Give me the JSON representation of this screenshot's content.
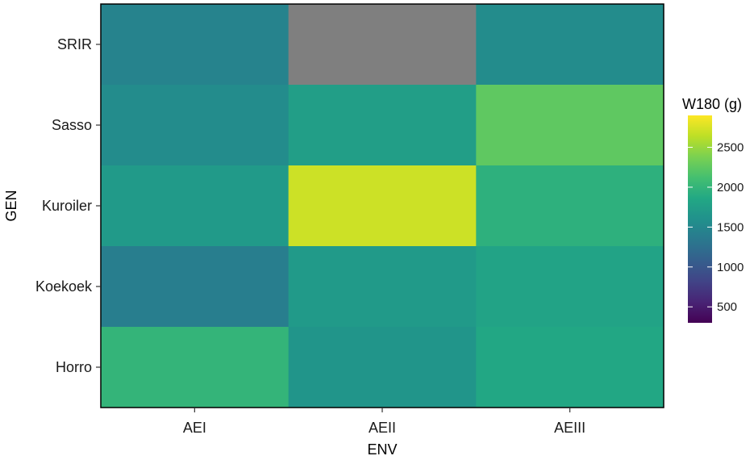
{
  "chart_data": {
    "type": "heatmap",
    "xlabel": "ENV",
    "ylabel": "GEN",
    "x_categories": [
      "AEI",
      "AEII",
      "AEIII"
    ],
    "y_categories": [
      "SRIR",
      "Sasso",
      "Kuroiler",
      "Koekoek",
      "Horro"
    ],
    "values": [
      [
        1450,
        null,
        1550
      ],
      [
        1550,
        1750,
        2250
      ],
      [
        1700,
        2700,
        1950
      ],
      [
        1400,
        1700,
        1800
      ],
      [
        2000,
        1650,
        1850
      ]
    ],
    "missing_color": "#7f7f7f",
    "colormap": "viridis",
    "legend": {
      "title": "W180 (g)",
      "position": "right",
      "range": [
        300,
        2900
      ],
      "ticks": [
        500,
        1000,
        1500,
        2000,
        2500
      ]
    },
    "grid": false
  }
}
